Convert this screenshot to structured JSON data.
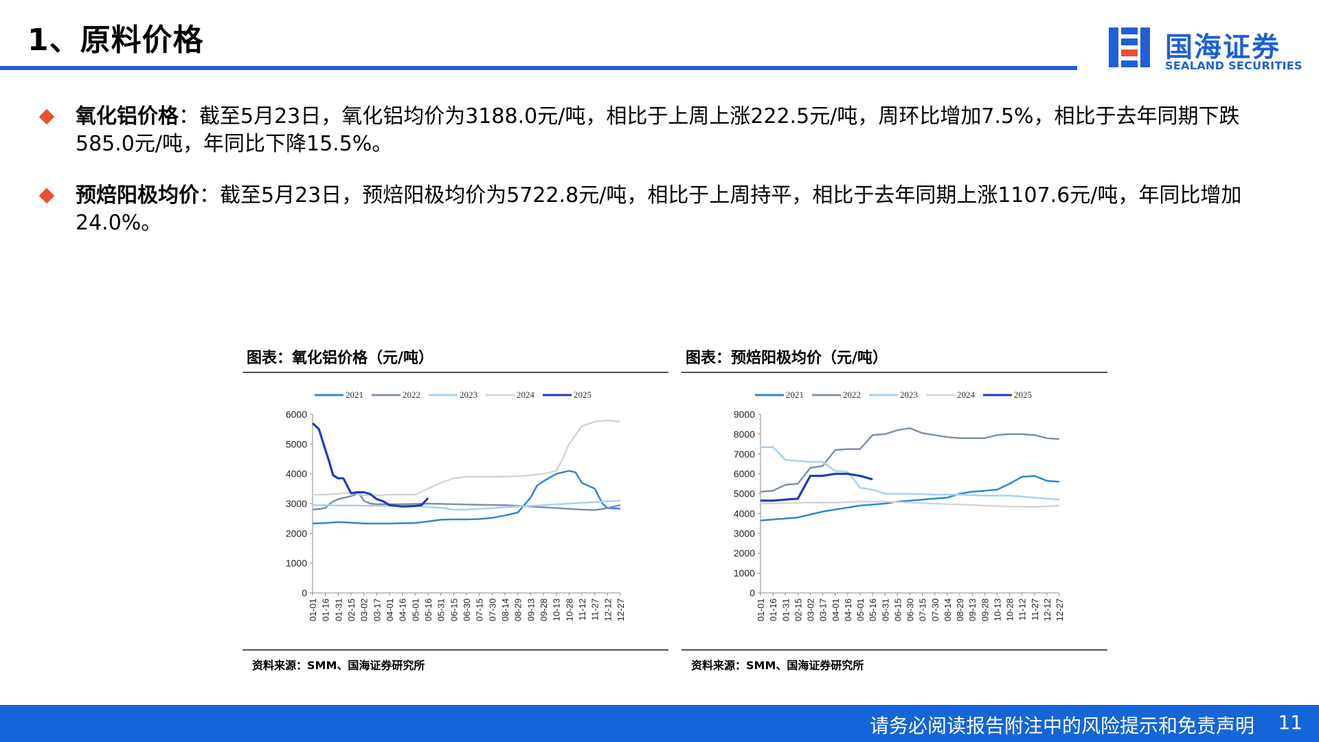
{
  "slide": {
    "title": "1、原料价格",
    "logo_cn": "国海证券",
    "logo_en": "SEALAND SECURITIES",
    "disclaimer": "请务必阅读报告附注中的风险提示和免责声明",
    "page_number": "11"
  },
  "bullets": [
    {
      "label": "氧化铝价格",
      "text": "：截至5月23日，氧化铝均价为3188.0元/吨，相比于上周上涨222.5元/吨，周环比增加7.5%，相比于去年同期下跌585.0元/吨，年同比下降15.5%。"
    },
    {
      "label": "预焙阳极均价",
      "text": "：截至5月23日，预焙阳极均价为5722.8元/吨，相比于上周持平，相比于去年同期上涨1107.6元/吨，年同比增加24.0%。"
    }
  ],
  "colors": {
    "accent": "#1f5fd6",
    "bullet": "#e8512b",
    "footer": "#1565d8"
  },
  "chart_data": [
    {
      "type": "line",
      "title": "图表：氧化铝价格（元/吨）",
      "source": "资料来源：SMM、国海证券研究所",
      "ylim": [
        0,
        6000
      ],
      "yticks": [
        0,
        1000,
        2000,
        3000,
        4000,
        5000,
        6000
      ],
      "xtick_labels": [
        "01-01",
        "01-16",
        "01-31",
        "02-15",
        "03-02",
        "03-17",
        "04-01",
        "04-16",
        "05-01",
        "05-16",
        "05-31",
        "06-15",
        "06-30",
        "07-15",
        "07-30",
        "08-14",
        "08-29",
        "09-13",
        "09-28",
        "10-13",
        "10-28",
        "11-12",
        "11-27",
        "12-12",
        "12-27"
      ],
      "legend_position": "top",
      "grid": false,
      "series": [
        {
          "name": "2021",
          "color": "#2e86d6",
          "width": 2.5,
          "points": [
            [
              0,
              2330
            ],
            [
              1,
              2350
            ],
            [
              2,
              2380
            ],
            [
              3,
              2360
            ],
            [
              4,
              2330
            ],
            [
              5,
              2330
            ],
            [
              6,
              2330
            ],
            [
              7,
              2340
            ],
            [
              8,
              2350
            ],
            [
              9,
              2400
            ],
            [
              10,
              2460
            ],
            [
              11,
              2470
            ],
            [
              12,
              2470
            ],
            [
              13,
              2480
            ],
            [
              14,
              2520
            ],
            [
              15,
              2600
            ],
            [
              16,
              2700
            ],
            [
              16.5,
              2950
            ],
            [
              17,
              3200
            ],
            [
              17.5,
              3600
            ],
            [
              18,
              3750
            ],
            [
              19,
              4000
            ],
            [
              20,
              4100
            ],
            [
              20.5,
              4050
            ],
            [
              21,
              3700
            ],
            [
              22,
              3500
            ],
            [
              22.6,
              3000
            ],
            [
              23,
              2850
            ],
            [
              24,
              2830
            ]
          ]
        },
        {
          "name": "2022",
          "color": "#7f8fa8",
          "width": 2.5,
          "points": [
            [
              0,
              2800
            ],
            [
              1,
              2850
            ],
            [
              1.5,
              3050
            ],
            [
              2,
              3150
            ],
            [
              3,
              3250
            ],
            [
              3.6,
              3350
            ],
            [
              4,
              3100
            ],
            [
              4.5,
              3000
            ],
            [
              5,
              2980
            ],
            [
              7,
              2980
            ],
            [
              9,
              3000
            ],
            [
              11,
              2980
            ],
            [
              13,
              2960
            ],
            [
              15,
              2950
            ],
            [
              17,
              2900
            ],
            [
              19,
              2850
            ],
            [
              21,
              2800
            ],
            [
              22,
              2780
            ],
            [
              23,
              2850
            ],
            [
              24,
              2950
            ]
          ]
        },
        {
          "name": "2023",
          "color": "#a8d0f0",
          "width": 2.5,
          "points": [
            [
              0,
              2950
            ],
            [
              2,
              2940
            ],
            [
              4,
              2930
            ],
            [
              6,
              2920
            ],
            [
              8,
              2920
            ],
            [
              10,
              2860
            ],
            [
              11,
              2800
            ],
            [
              12,
              2800
            ],
            [
              14,
              2850
            ],
            [
              16,
              2900
            ],
            [
              18,
              2950
            ],
            [
              20,
              3000
            ],
            [
              22,
              3050
            ],
            [
              24,
              3100
            ]
          ]
        },
        {
          "name": "2024",
          "color": "#d5d5d5",
          "width": 2.5,
          "points": [
            [
              0,
              3300
            ],
            [
              1,
              3300
            ],
            [
              2,
              3330
            ],
            [
              3,
              3380
            ],
            [
              4,
              3280
            ],
            [
              5,
              3280
            ],
            [
              6,
              3300
            ],
            [
              7,
              3300
            ],
            [
              8,
              3300
            ],
            [
              9,
              3500
            ],
            [
              10,
              3700
            ],
            [
              11,
              3850
            ],
            [
              12,
              3900
            ],
            [
              14,
              3900
            ],
            [
              16,
              3920
            ],
            [
              17,
              3950
            ],
            [
              18,
              4000
            ],
            [
              19,
              4100
            ],
            [
              19.5,
              4500
            ],
            [
              20,
              5000
            ],
            [
              20.5,
              5300
            ],
            [
              21,
              5600
            ],
            [
              22,
              5750
            ],
            [
              23,
              5800
            ],
            [
              24,
              5750
            ]
          ]
        },
        {
          "name": "2025",
          "color": "#1f3bbf",
          "width": 3.2,
          "points": [
            [
              0,
              5700
            ],
            [
              0.5,
              5500
            ],
            [
              1,
              4800
            ],
            [
              1.3,
              4400
            ],
            [
              1.6,
              3950
            ],
            [
              2,
              3850
            ],
            [
              2.4,
              3850
            ],
            [
              3,
              3350
            ],
            [
              3.5,
              3380
            ],
            [
              4,
              3380
            ],
            [
              4.5,
              3320
            ],
            [
              5,
              3150
            ],
            [
              5.5,
              3080
            ],
            [
              6,
              2950
            ],
            [
              7,
              2900
            ],
            [
              8,
              2920
            ],
            [
              8.5,
              2950
            ],
            [
              9,
              3188
            ]
          ]
        }
      ]
    },
    {
      "type": "line",
      "title": "图表：预焙阳极均价（元/吨）",
      "source": "资料来源：SMM、国海证券研究所",
      "ylim": [
        0,
        9000
      ],
      "yticks": [
        0,
        1000,
        2000,
        3000,
        4000,
        5000,
        6000,
        7000,
        8000,
        9000
      ],
      "xtick_labels": [
        "01-01",
        "01-16",
        "01-31",
        "02-15",
        "03-02",
        "03-17",
        "04-01",
        "04-16",
        "05-01",
        "05-16",
        "05-31",
        "06-15",
        "06-30",
        "07-15",
        "07-30",
        "08-14",
        "08-29",
        "09-13",
        "09-28",
        "10-13",
        "10-28",
        "11-12",
        "11-27",
        "12-12",
        "12-27"
      ],
      "legend_position": "top",
      "grid": false,
      "series": [
        {
          "name": "2021",
          "color": "#2e86d6",
          "width": 2.5,
          "points": [
            [
              0,
              3650
            ],
            [
              1,
              3700
            ],
            [
              2,
              3750
            ],
            [
              3,
              3800
            ],
            [
              4,
              3950
            ],
            [
              5,
              4100
            ],
            [
              6,
              4200
            ],
            [
              7,
              4300
            ],
            [
              8,
              4400
            ],
            [
              9,
              4450
            ],
            [
              10,
              4500
            ],
            [
              11,
              4600
            ],
            [
              12,
              4650
            ],
            [
              13,
              4700
            ],
            [
              14,
              4750
            ],
            [
              15,
              4800
            ],
            [
              16,
              5000
            ],
            [
              17,
              5100
            ],
            [
              18,
              5150
            ],
            [
              19,
              5200
            ],
            [
              20,
              5500
            ],
            [
              21,
              5850
            ],
            [
              22,
              5900
            ],
            [
              23,
              5650
            ],
            [
              24,
              5600
            ]
          ]
        },
        {
          "name": "2022",
          "color": "#7f8fa8",
          "width": 2.5,
          "points": [
            [
              0,
              5100
            ],
            [
              1,
              5150
            ],
            [
              2,
              5450
            ],
            [
              3,
              5500
            ],
            [
              4,
              6300
            ],
            [
              5,
              6400
            ],
            [
              6,
              7200
            ],
            [
              7,
              7250
            ],
            [
              8,
              7250
            ],
            [
              9,
              7950
            ],
            [
              10,
              8000
            ],
            [
              11,
              8200
            ],
            [
              12,
              8300
            ],
            [
              13,
              8050
            ],
            [
              14,
              7950
            ],
            [
              15,
              7850
            ],
            [
              16,
              7800
            ],
            [
              17,
              7800
            ],
            [
              18,
              7800
            ],
            [
              19,
              7950
            ],
            [
              20,
              8000
            ],
            [
              21,
              8000
            ],
            [
              22,
              7950
            ],
            [
              23,
              7800
            ],
            [
              24,
              7750
            ]
          ]
        },
        {
          "name": "2023",
          "color": "#a8d0f0",
          "width": 2.5,
          "points": [
            [
              0,
              7350
            ],
            [
              1,
              7350
            ],
            [
              2,
              6700
            ],
            [
              3,
              6650
            ],
            [
              4,
              6600
            ],
            [
              5,
              6600
            ],
            [
              6,
              6150
            ],
            [
              7,
              6100
            ],
            [
              8,
              5300
            ],
            [
              9,
              5200
            ],
            [
              10,
              5000
            ],
            [
              12,
              5000
            ],
            [
              14,
              4950
            ],
            [
              16,
              4950
            ],
            [
              18,
              4900
            ],
            [
              20,
              4900
            ],
            [
              22,
              4800
            ],
            [
              24,
              4700
            ]
          ]
        },
        {
          "name": "2024",
          "color": "#d5d5d5",
          "width": 2.5,
          "points": [
            [
              0,
              4500
            ],
            [
              2,
              4520
            ],
            [
              4,
              4550
            ],
            [
              6,
              4550
            ],
            [
              8,
              4600
            ],
            [
              10,
              4600
            ],
            [
              12,
              4550
            ],
            [
              14,
              4500
            ],
            [
              16,
              4450
            ],
            [
              18,
              4400
            ],
            [
              20,
              4350
            ],
            [
              22,
              4330
            ],
            [
              24,
              4400
            ]
          ]
        },
        {
          "name": "2025",
          "color": "#1f3bbf",
          "width": 3.2,
          "points": [
            [
              0,
              4650
            ],
            [
              1,
              4650
            ],
            [
              2,
              4700
            ],
            [
              3,
              4750
            ],
            [
              4,
              5900
            ],
            [
              5,
              5900
            ],
            [
              6,
              6000
            ],
            [
              7,
              6000
            ],
            [
              8,
              5900
            ],
            [
              9,
              5722.8
            ]
          ]
        }
      ]
    }
  ]
}
